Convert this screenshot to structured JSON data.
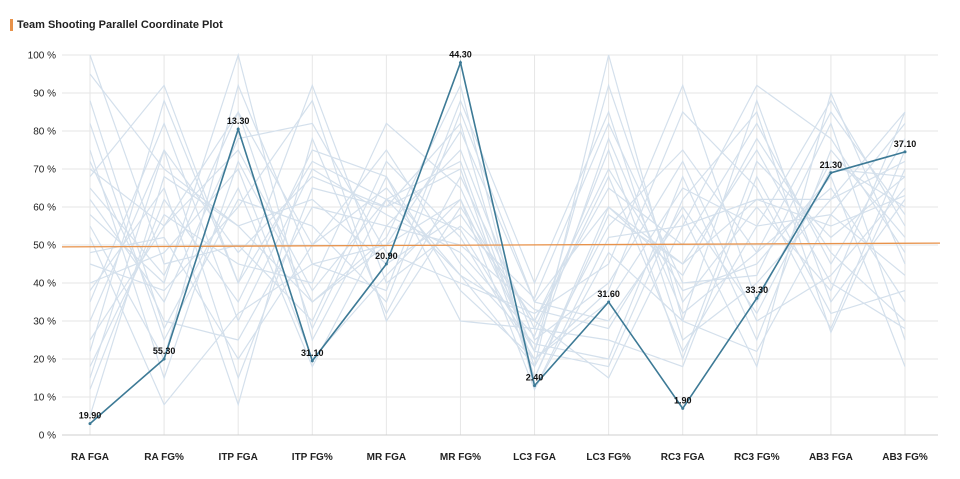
{
  "title": "Team Shooting Parallel Coordinate Plot",
  "colors": {
    "accent": "#e8924a",
    "highlight": "#3d7a96",
    "background_lines": "#d4e0ec",
    "grid": "#e6e6e6",
    "reference_line": "#e8924a"
  },
  "chart_data": {
    "type": "line",
    "title": "Team Shooting Parallel Coordinate Plot",
    "categories": [
      "RA FGA",
      "RA FG%",
      "ITP FGA",
      "ITP FG%",
      "MR FGA",
      "MR FG%",
      "LC3 FGA",
      "LC3 FG%",
      "RC3 FGA",
      "RC3 FG%",
      "AB3 FGA",
      "AB3 FG%"
    ],
    "y_ticks": [
      "0 %",
      "10 %",
      "20 %",
      "30 %",
      "40 %",
      "50 %",
      "60 %",
      "70 %",
      "80 %",
      "90 %",
      "100 %"
    ],
    "ylim": [
      0,
      100
    ],
    "grid": true,
    "highlight_series": {
      "scaled_percent": [
        3,
        20,
        80.5,
        19.5,
        45,
        98,
        13,
        35,
        7,
        36,
        69,
        74.5
      ],
      "labels": [
        "19.90",
        "55.30",
        "13.30",
        "31.10",
        "20.90",
        "44.30",
        "2.40",
        "31.60",
        "1.90",
        "33.30",
        "21.30",
        "37.10"
      ]
    },
    "reference_line": {
      "start_percent": 49.5,
      "end_percent": 50.5
    },
    "background_series": [
      [
        95,
        70,
        55,
        35,
        50,
        80,
        35,
        60,
        45,
        62,
        55,
        63
      ],
      [
        68,
        92,
        40,
        72,
        62,
        54,
        22,
        18,
        62,
        85,
        27,
        70
      ],
      [
        45,
        38,
        60,
        88,
        30,
        60,
        30,
        70,
        38,
        45,
        68,
        18
      ],
      [
        25,
        55,
        85,
        50,
        65,
        42,
        18,
        100,
        30,
        22,
        58,
        82
      ],
      [
        72,
        30,
        25,
        60,
        55,
        75,
        25,
        40,
        72,
        30,
        42,
        65
      ],
      [
        40,
        48,
        70,
        20,
        42,
        62,
        12,
        52,
        55,
        92,
        78,
        48
      ],
      [
        12,
        62,
        35,
        75,
        68,
        30,
        28,
        25,
        18,
        68,
        32,
        38
      ],
      [
        55,
        20,
        92,
        45,
        38,
        88,
        40,
        85,
        25,
        40,
        62,
        72
      ],
      [
        100,
        45,
        50,
        30,
        72,
        52,
        20,
        35,
        65,
        55,
        88,
        55
      ],
      [
        30,
        75,
        15,
        65,
        60,
        70,
        15,
        60,
        42,
        78,
        48,
        30
      ],
      [
        62,
        35,
        78,
        82,
        48,
        40,
        32,
        45,
        92,
        35,
        72,
        60
      ],
      [
        18,
        58,
        45,
        40,
        82,
        65,
        22,
        92,
        35,
        60,
        38,
        85
      ],
      [
        82,
        25,
        62,
        55,
        35,
        85,
        35,
        30,
        58,
        18,
        90,
        45
      ],
      [
        35,
        82,
        30,
        70,
        58,
        48,
        26,
        75,
        20,
        72,
        52,
        68
      ],
      [
        58,
        40,
        100,
        25,
        62,
        72,
        18,
        55,
        75,
        48,
        65,
        35
      ],
      [
        5,
        68,
        55,
        62,
        45,
        58,
        30,
        65,
        50,
        82,
        45,
        78
      ],
      [
        48,
        52,
        20,
        50,
        75,
        45,
        24,
        20,
        68,
        25,
        75,
        52
      ],
      [
        75,
        15,
        72,
        35,
        52,
        92,
        12,
        48,
        30,
        88,
        35,
        62
      ],
      [
        22,
        88,
        40,
        92,
        40,
        55,
        36,
        82,
        40,
        42,
        82,
        25
      ],
      [
        65,
        42,
        85,
        28,
        68,
        38,
        20,
        38,
        85,
        65,
        28,
        75
      ],
      [
        38,
        65,
        8,
        78,
        32,
        68,
        28,
        68,
        22,
        55,
        58,
        42
      ],
      [
        88,
        28,
        65,
        18,
        55,
        50,
        33,
        28,
        60,
        32,
        70,
        68
      ],
      [
        15,
        75,
        48,
        68,
        60,
        82,
        15,
        58,
        45,
        75,
        40,
        28
      ],
      [
        52,
        8,
        32,
        45,
        50,
        62,
        22,
        78,
        32,
        48,
        85,
        58
      ],
      [
        70,
        55,
        75,
        38,
        62,
        42,
        30,
        15,
        55,
        62,
        62,
        85
      ]
    ]
  }
}
